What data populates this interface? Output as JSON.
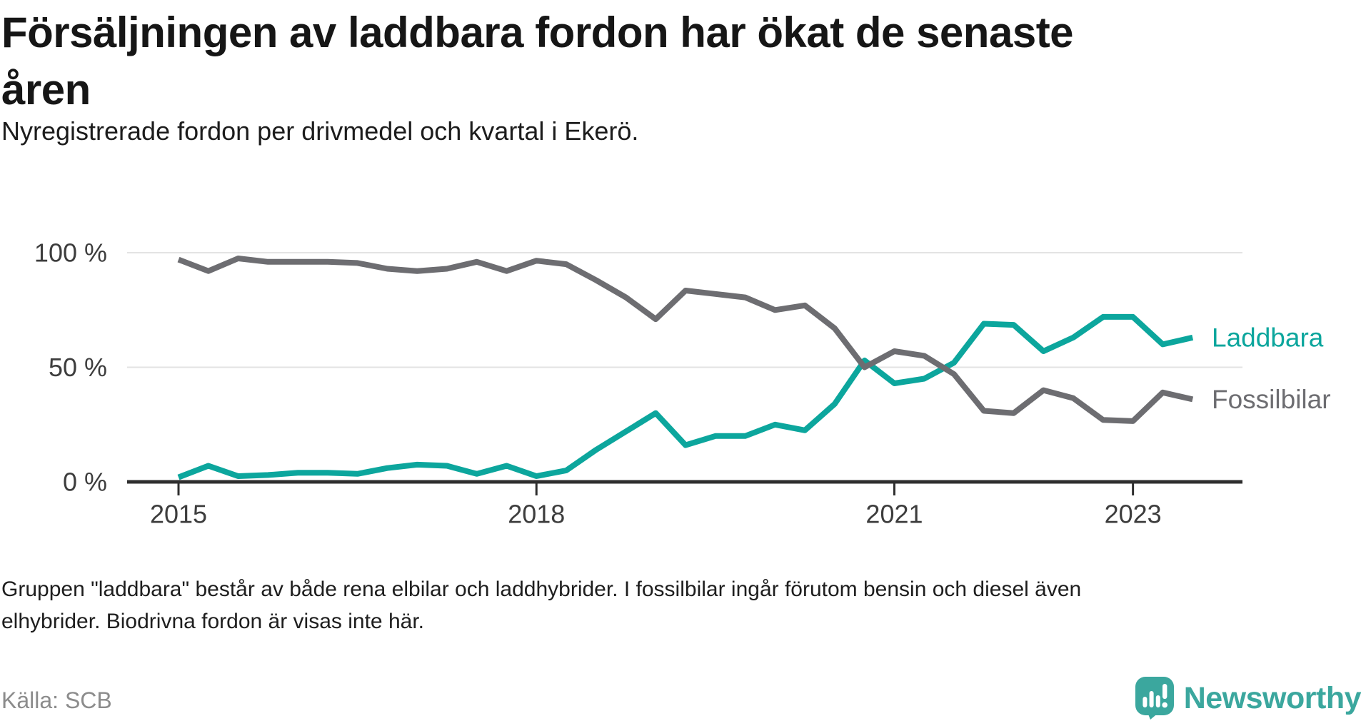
{
  "header": {
    "title_lines": [
      "Försäljningen av laddbara fordon har ökat de senaste",
      "åren"
    ],
    "subtitle": "Nyregistrerade fordon per drivmedel och kvartal i Ekerö."
  },
  "chart_data": {
    "type": "line",
    "title": "Försäljningen av laddbara fordon har ökat de senaste åren",
    "subtitle": "Nyregistrerade fordon per drivmedel och kvartal i Ekerö.",
    "xlabel": "",
    "ylabel": "",
    "ylim": [
      0,
      100
    ],
    "grid": "horizontal",
    "legend_position": "end-of-line-labels",
    "categories": [
      "2015 Q1",
      "2015 Q2",
      "2015 Q3",
      "2015 Q4",
      "2016 Q1",
      "2016 Q2",
      "2016 Q3",
      "2016 Q4",
      "2017 Q1",
      "2017 Q2",
      "2017 Q3",
      "2017 Q4",
      "2018 Q1",
      "2018 Q2",
      "2018 Q3",
      "2018 Q4",
      "2019 Q1",
      "2019 Q2",
      "2019 Q3",
      "2019 Q4",
      "2020 Q1",
      "2020 Q2",
      "2020 Q3",
      "2020 Q4",
      "2021 Q1",
      "2021 Q2",
      "2021 Q3",
      "2021 Q4",
      "2022 Q1",
      "2022 Q2",
      "2022 Q3",
      "2022 Q4",
      "2023 Q1",
      "2023 Q2",
      "2023 Q3"
    ],
    "series": [
      {
        "name": "Laddbara",
        "color": "#0ca69d",
        "values": [
          2,
          7,
          2.5,
          3,
          4,
          4,
          3.5,
          6,
          7.5,
          7,
          3.5,
          7,
          2.5,
          5,
          14,
          22,
          30,
          16,
          20,
          20,
          25,
          22.5,
          34,
          53,
          43,
          45,
          52,
          69,
          68.5,
          57,
          63,
          72,
          72,
          60,
          63
        ]
      },
      {
        "name": "Fossilbilar",
        "color": "#6d6d71",
        "values": [
          97,
          92,
          97.5,
          96,
          96,
          96,
          95.5,
          93,
          92,
          93,
          96,
          92,
          96.5,
          95,
          88,
          80.5,
          71,
          83.5,
          82,
          80.5,
          75,
          77,
          67,
          50,
          57,
          55,
          47,
          31,
          30,
          40,
          36.5,
          27,
          26.5,
          39,
          36
        ]
      }
    ],
    "yticks": [
      {
        "value": 0,
        "label": "0 %"
      },
      {
        "value": 50,
        "label": "50 %"
      },
      {
        "value": 100,
        "label": "100 %"
      }
    ],
    "xticks": [
      {
        "index": 0,
        "label": "2015"
      },
      {
        "index": 12,
        "label": "2018"
      },
      {
        "index": 24,
        "label": "2021"
      },
      {
        "index": 32,
        "label": "2023"
      }
    ]
  },
  "footnote": {
    "lines": [
      "Gruppen \"laddbara\" består av både rena elbilar och laddhybrider. I fossilbilar ingår förutom bensin och diesel även",
      "elhybrider. Biodrivna fordon är visas inte här."
    ]
  },
  "source": "Källa: SCB",
  "logo": {
    "text": "Newsworthy",
    "color": "#3ba79e"
  }
}
